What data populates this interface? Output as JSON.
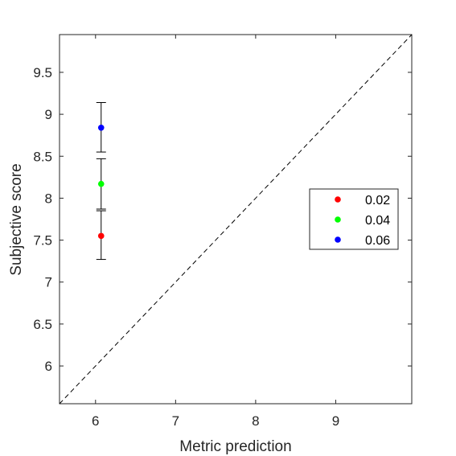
{
  "chart_data": {
    "type": "scatter",
    "title": "",
    "xlabel": "Metric prediction",
    "ylabel": "Subjective score",
    "xlim": [
      5.55,
      9.95
    ],
    "ylim": [
      5.55,
      9.95
    ],
    "xticks": [
      6,
      7,
      8,
      9
    ],
    "xtick_labels": [
      "6",
      "7",
      "8",
      "9"
    ],
    "yticks": [
      6,
      6.5,
      7,
      7.5,
      8,
      8.5,
      9,
      9.5
    ],
    "ytick_labels": [
      "6",
      "6.5",
      "7",
      "7.5",
      "8",
      "8.5",
      "9",
      "9.5"
    ],
    "grid": false,
    "reference_line": {
      "style": "dashed",
      "from": [
        5.55,
        5.55
      ],
      "to": [
        9.95,
        9.95
      ]
    },
    "legend_position": "right",
    "series": [
      {
        "name": "0.02",
        "color": "#ff0000",
        "x": 6.07,
        "y": 7.55,
        "err_low": 7.27,
        "err_high": 7.85
      },
      {
        "name": "0.04",
        "color": "#00ff00",
        "x": 6.07,
        "y": 8.17,
        "err_low": 7.87,
        "err_high": 8.47
      },
      {
        "name": "0.06",
        "color": "#0000ff",
        "x": 6.07,
        "y": 8.84,
        "err_low": 8.55,
        "err_high": 9.14
      }
    ]
  }
}
